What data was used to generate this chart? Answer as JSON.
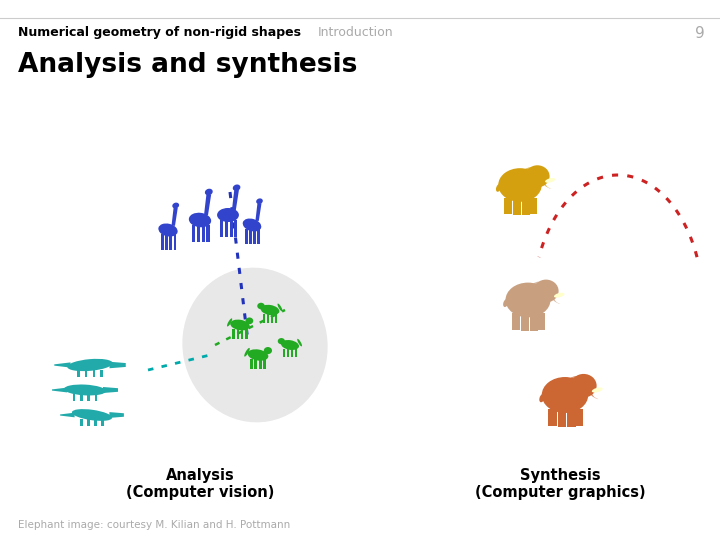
{
  "title_main": "Numerical geometry of non-rigid shapes",
  "title_section": "Introduction",
  "slide_number": "9",
  "slide_title": "Analysis and synthesis",
  "label_left_line1": "Analysis",
  "label_left_line2": "(Computer vision)",
  "label_right_line1": "Synthesis",
  "label_right_line2": "(Computer graphics)",
  "footnote": "Elephant image: courtesy M. Kilian and H. Pottmann",
  "bg_color": "#ffffff",
  "title_color": "#000000",
  "section_color": "#aaaaaa",
  "slide_num_color": "#aaaaaa",
  "subtitle_color": "#000000",
  "label_color": "#000000",
  "footnote_color": "#aaaaaa",
  "header_line_color": "#cccccc",
  "blue_dot_color": "#2233bb",
  "teal_dot_color": "#00aaaa",
  "red_dot_color": "#cc2222",
  "green_dot_color": "#22aa22",
  "ellipse_color": "#cccccc",
  "giraffe_color": "#3344cc",
  "croc_color": "#22aaaa",
  "dog_color": "#22aa22",
  "elephant_gold_color": "#d4a010",
  "elephant_tan_color": "#c8a080",
  "elephant_orange_color": "#cc6633"
}
